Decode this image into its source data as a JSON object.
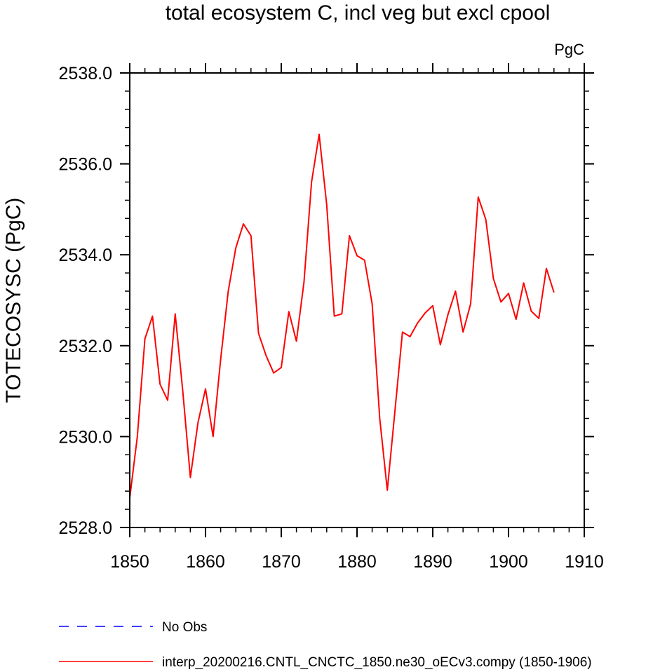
{
  "chart_data": {
    "type": "line",
    "title": "total ecosystem C, incl veg but excl cpool",
    "units_label": "PgC",
    "ylabel": "TOTECOSYSC  (PgC)",
    "xlabel": "",
    "xlim": [
      1850,
      1910
    ],
    "ylim": [
      2528.0,
      2538.0
    ],
    "x_ticks": [
      1850,
      1860,
      1870,
      1880,
      1890,
      1900,
      1910
    ],
    "x_tick_labels": [
      "1850",
      "1860",
      "1870",
      "1880",
      "1890",
      "1900",
      "1910"
    ],
    "y_ticks": [
      2528.0,
      2530.0,
      2532.0,
      2534.0,
      2536.0,
      2538.0
    ],
    "y_tick_labels": [
      "2528.0",
      "2530.0",
      "2532.0",
      "2534.0",
      "2536.0",
      "2538.0"
    ],
    "grid": false,
    "legend": [
      {
        "label": "No Obs",
        "color": "#0000ff",
        "style": "dashed"
      },
      {
        "label": "interp_20200216.CNTL_CNCTC_1850.ne30_oECv3.compy (1850-1906)",
        "color": "#ff0000",
        "style": "solid"
      }
    ],
    "series": [
      {
        "name": "interp_20200216.CNTL_CNCTC_1850.ne30_oECv3.compy (1850-1906)",
        "color": "#ff0000",
        "x": [
          1850,
          1851,
          1852,
          1853,
          1854,
          1855,
          1856,
          1857,
          1858,
          1859,
          1860,
          1861,
          1862,
          1863,
          1864,
          1865,
          1866,
          1867,
          1868,
          1869,
          1870,
          1871,
          1872,
          1873,
          1874,
          1875,
          1876,
          1877,
          1878,
          1879,
          1880,
          1881,
          1882,
          1883,
          1884,
          1885,
          1886,
          1887,
          1888,
          1889,
          1890,
          1891,
          1892,
          1893,
          1894,
          1895,
          1896,
          1897,
          1898,
          1899,
          1900,
          1901,
          1902,
          1903,
          1904,
          1905,
          1906
        ],
        "values": [
          2528.65,
          2530.0,
          2532.15,
          2532.65,
          2531.15,
          2530.8,
          2532.7,
          2531.0,
          2529.1,
          2530.3,
          2531.05,
          2530.0,
          2531.7,
          2533.2,
          2534.15,
          2534.68,
          2534.42,
          2532.27,
          2531.78,
          2531.4,
          2531.52,
          2532.75,
          2532.1,
          2533.4,
          2535.6,
          2536.65,
          2535.1,
          2532.65,
          2532.7,
          2534.42,
          2533.98,
          2533.88,
          2532.92,
          2530.4,
          2528.82,
          2530.55,
          2532.3,
          2532.2,
          2532.5,
          2532.72,
          2532.88,
          2532.02,
          2532.68,
          2533.2,
          2532.3,
          2532.92,
          2535.27,
          2534.78,
          2533.48,
          2532.96,
          2533.15,
          2532.58,
          2533.38,
          2532.76,
          2532.6,
          2533.7,
          2533.17
        ]
      }
    ]
  }
}
